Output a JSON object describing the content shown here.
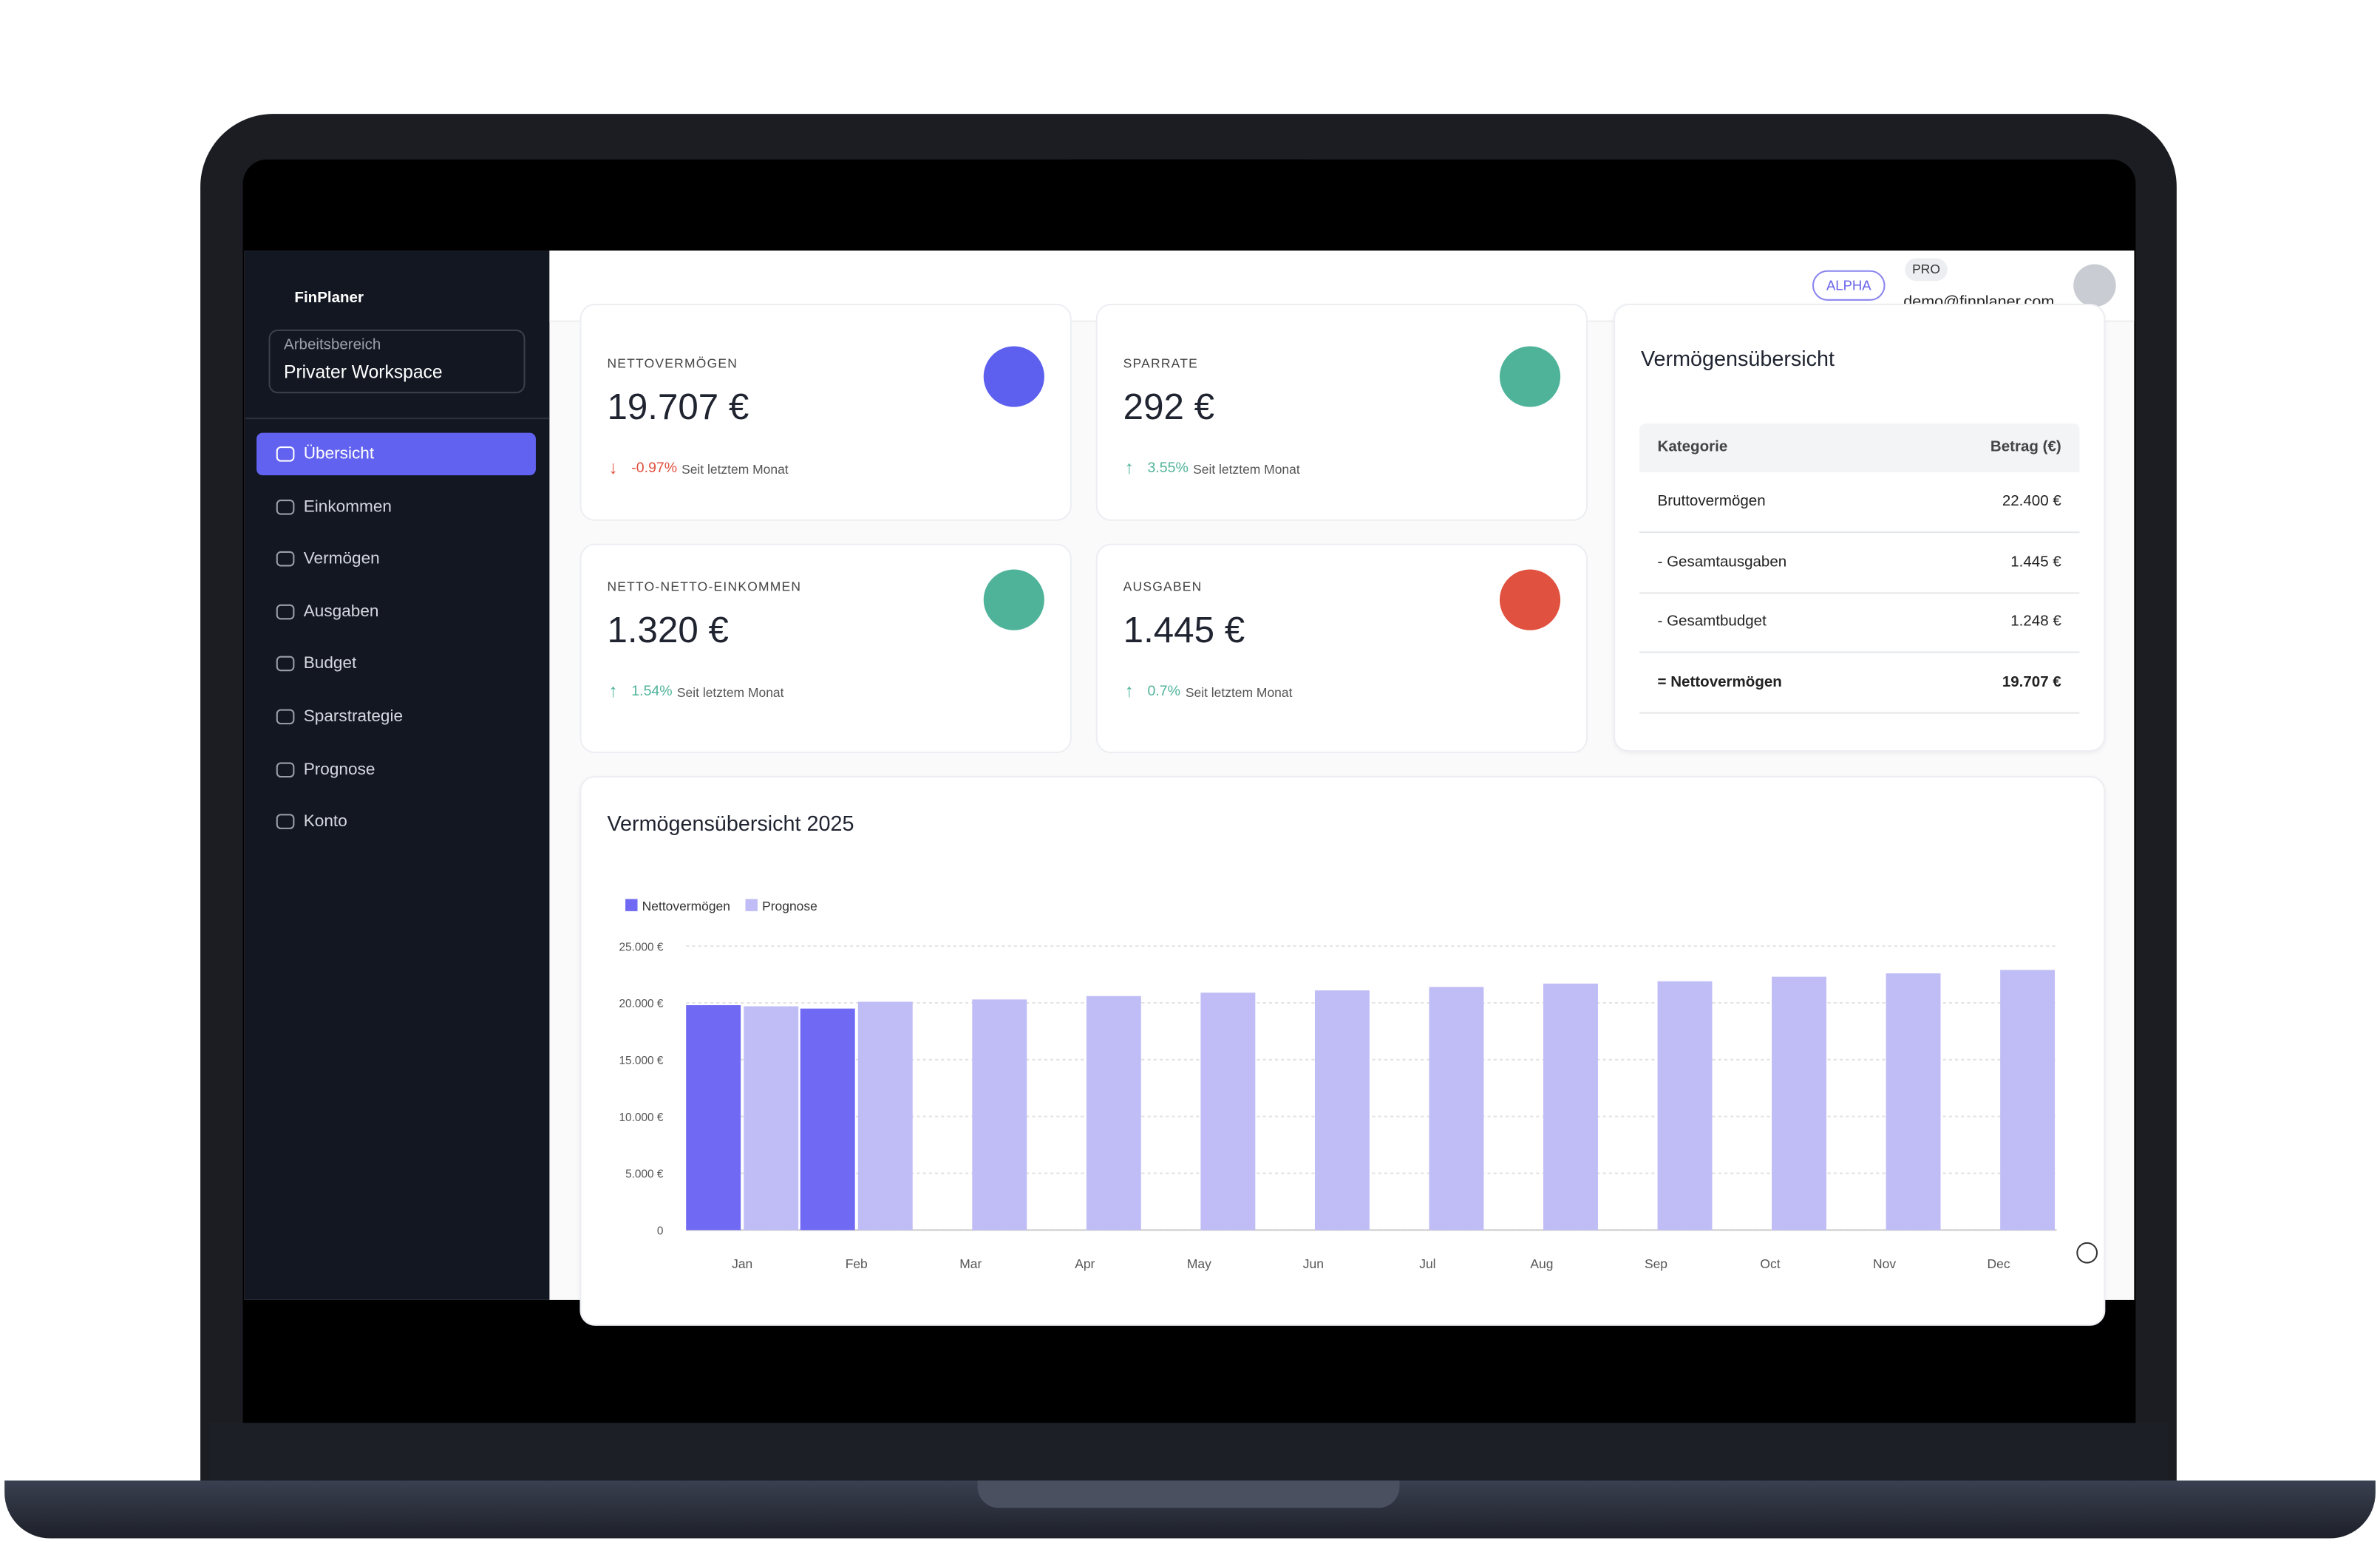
{
  "sidebar": {
    "logo": "FinPlaner",
    "workspace_label": "Arbeitsbereich",
    "workspace": "Privater Workspace",
    "nav": [
      "Übersicht",
      "Einkommen",
      "Vermögen",
      "Ausgaben",
      "Budget",
      "Sparstrategie",
      "Prognose",
      "Konto"
    ],
    "active": 0
  },
  "header": {
    "badge": "ALPHA",
    "plan": "PRO",
    "email": "demo@finplaner.com"
  },
  "cards": [
    {
      "label": "NETTOVERMÖGEN",
      "value": "19.707 €",
      "change": "-0.97%",
      "note": "Seit letztem Monat",
      "trend": "down",
      "color": "#5d5fef"
    },
    {
      "label": "SPARRATE",
      "value": "292 €",
      "change": "3.55%",
      "note": "Seit letztem Monat",
      "trend": "up",
      "color": "#4fb39a"
    },
    {
      "label": "NETTO-NETTO-EINKOMMEN",
      "value": "1.320 €",
      "change": "1.54%",
      "note": "Seit letztem Monat",
      "trend": "up",
      "color": "#4fb39a"
    },
    {
      "label": "AUSGABEN",
      "value": "1.445 €",
      "change": "0.7%",
      "note": "Seit letztem Monat",
      "trend": "up",
      "color": "#e0513f"
    }
  ],
  "table": {
    "title": "Vermögensübersicht",
    "columns": [
      "Kategorie",
      "Betrag (€)"
    ],
    "rows": [
      [
        "Bruttovermögen",
        "22.400 €"
      ],
      [
        "- Gesamtausgaben",
        "1.445 €"
      ],
      [
        "- Gesamtbudget",
        "1.248 €"
      ],
      [
        "= Nettovermögen",
        "19.707 €"
      ]
    ]
  },
  "chart_data": {
    "type": "bar",
    "title": "Vermögensübersicht 2025",
    "categories": [
      "Jan",
      "Feb",
      "Mar",
      "Apr",
      "May",
      "Jun",
      "Jul",
      "Aug",
      "Sep",
      "Oct",
      "Nov",
      "Dec"
    ],
    "series": [
      {
        "name": "Nettovermögen",
        "color": "#7069f4",
        "values": [
          19800,
          19500,
          null,
          null,
          null,
          null,
          null,
          null,
          null,
          null,
          null,
          null
        ]
      },
      {
        "name": "Prognose",
        "color": "#c0bdf6",
        "values": [
          19700,
          20100,
          20300,
          20600,
          20900,
          21100,
          21400,
          21700,
          21900,
          22300,
          22600,
          22900
        ]
      }
    ],
    "ylim": [
      0,
      25000
    ],
    "yticks": [
      0,
      {
        "value": 5000,
        "label": "5.000 €"
      },
      {
        "value": 10000,
        "label": "10.000 €"
      },
      {
        "value": 15000,
        "label": "15.000 €"
      },
      {
        "value": 20000,
        "label": "20.000 €"
      },
      {
        "value": 25000,
        "label": "25.000 €"
      }
    ],
    "grid": true
  }
}
